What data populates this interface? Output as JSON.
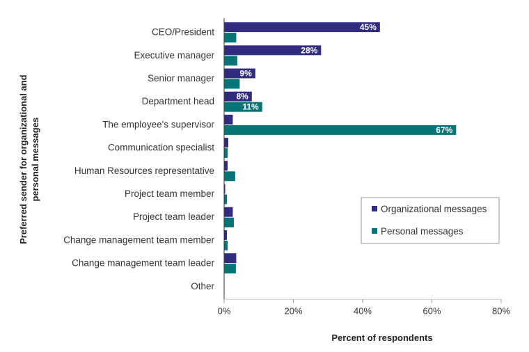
{
  "chart_data": {
    "type": "bar",
    "orientation": "horizontal",
    "categories": [
      "CEO/President",
      "Executive manager",
      "Senior manager",
      "Department head",
      "The employee's supervisor",
      "Communication specialist",
      "Human Resources representative",
      "Project team member",
      "Project team leader",
      "Change management team member",
      "Change management team leader",
      "Other"
    ],
    "series": [
      {
        "name": "Organizational messages",
        "color": "#312c80",
        "values": [
          45,
          28,
          9,
          8,
          2.5,
          1.2,
          1.0,
          0.3,
          2.5,
          0.8,
          3.5,
          0
        ],
        "labels": [
          "45%",
          "28%",
          "9%",
          "8%",
          "",
          "",
          "",
          "",
          "",
          "",
          "",
          ""
        ]
      },
      {
        "name": "Personal messages",
        "color": "#077577",
        "values": [
          3.5,
          3.8,
          4.5,
          11,
          67,
          1.0,
          3.2,
          0.8,
          2.8,
          1.0,
          3.4,
          0
        ],
        "labels": [
          "",
          "",
          "",
          "11%",
          "67%",
          "",
          "",
          "",
          "",
          "",
          "",
          ""
        ]
      }
    ],
    "xlabel": "Percent of respondents",
    "ylabel": "Preferred sender for organizational and personal messages",
    "xlim": [
      0,
      80
    ],
    "xticks": [
      "0%",
      "20%",
      "40%",
      "60%",
      "80%"
    ],
    "tick_values": [
      0,
      20,
      40,
      60,
      80
    ],
    "grid": false,
    "legend_position": "right-middle"
  }
}
